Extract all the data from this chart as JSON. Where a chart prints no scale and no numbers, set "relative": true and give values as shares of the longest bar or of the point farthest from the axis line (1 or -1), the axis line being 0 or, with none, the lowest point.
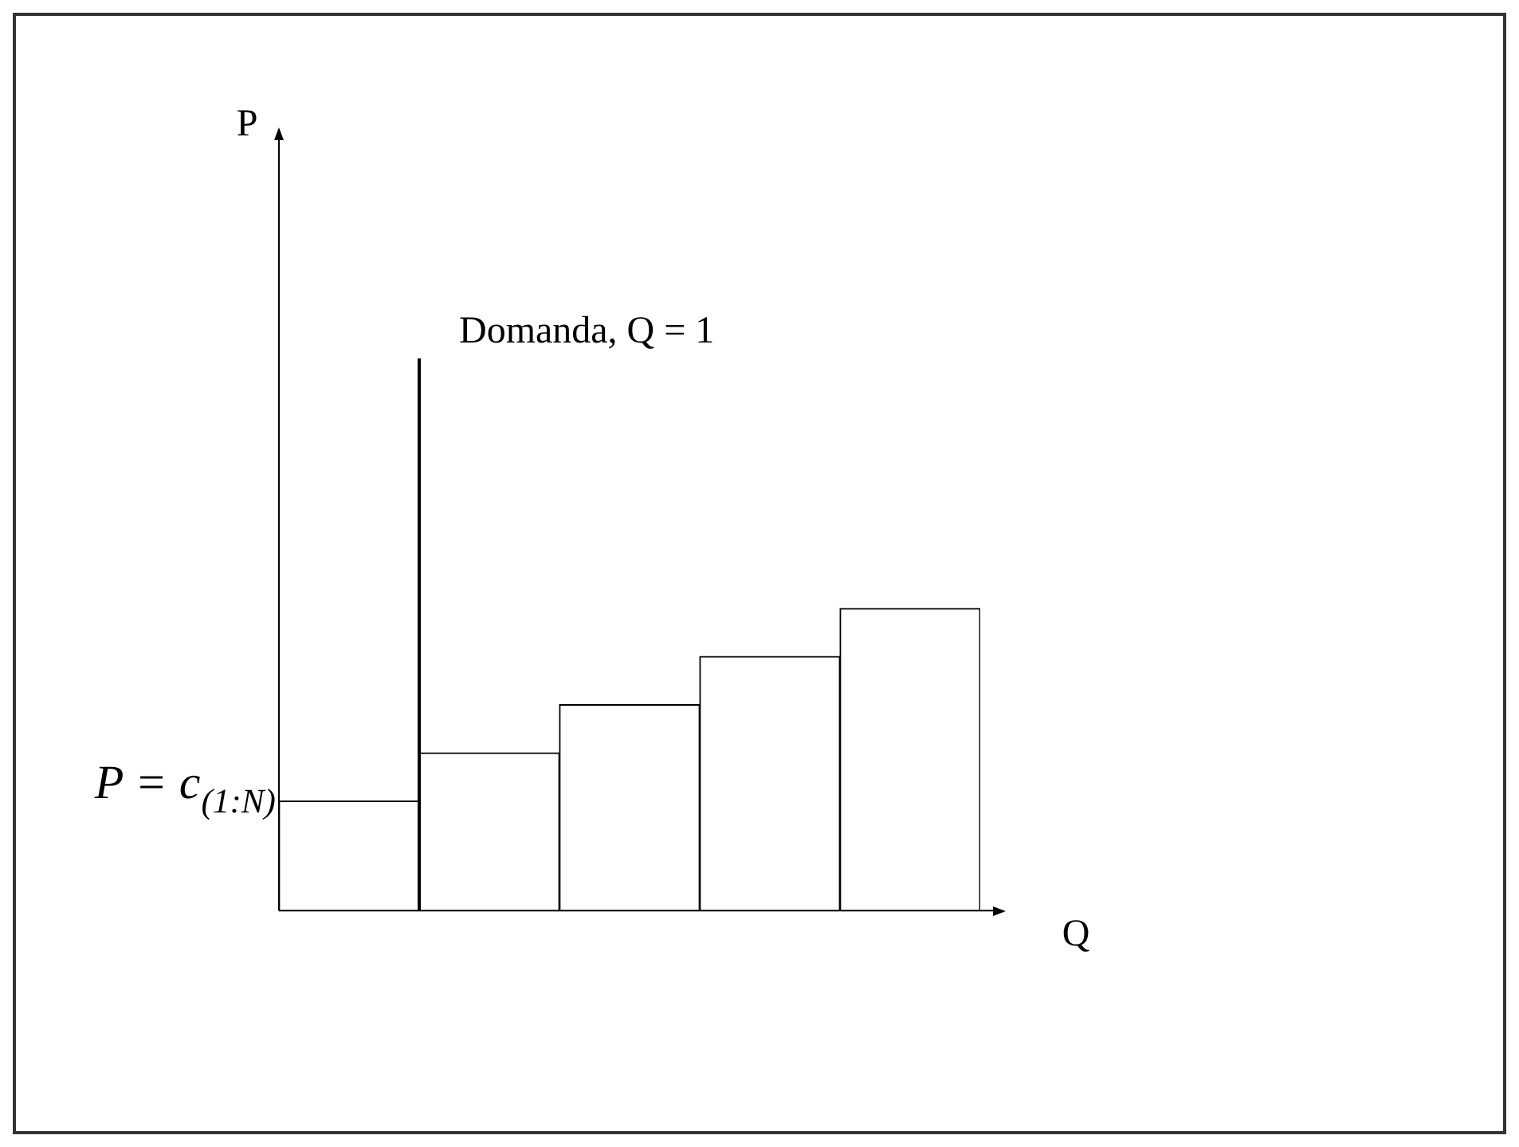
{
  "chart_data": {
    "type": "bar",
    "relative": true,
    "categories": [
      null,
      null,
      null,
      null,
      null
    ],
    "values": [
      0.363,
      0.522,
      0.682,
      0.841,
      1
    ],
    "color": "#ffffff",
    "annotations": [
      "Domanda, Q = 1",
      "P = c$_{(1:N)}$",
      "P",
      "Q"
    ],
    "legend": false
  }
}
